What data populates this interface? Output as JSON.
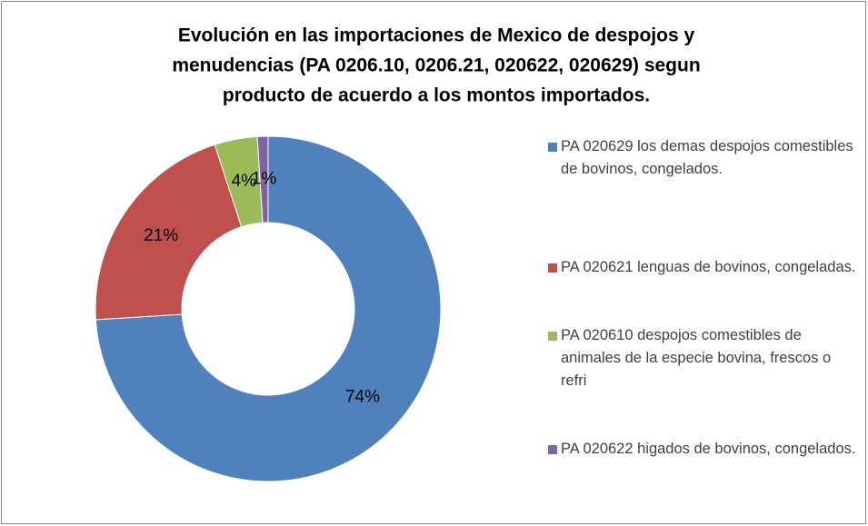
{
  "chart_data": {
    "type": "pie",
    "title": [
      "Evolución en las importaciones de Mexico de despojos y",
      "menudencias (PA 0206.10, 0206.21, 020622, 020629) segun",
      "producto de acuerdo a los montos importados."
    ],
    "categories": [
      "PA 020629 los demas despojos comestibles de bovinos, congelados.",
      "PA 020621 lenguas de bovinos, congeladas.",
      "PA 020610 despojos comestibles de animales de la especie bovina, frescos o refri",
      "PA 020622 higados de bovinos, congelados."
    ],
    "values": [
      74,
      21,
      4,
      1
    ],
    "value_labels": [
      "74%",
      "21%",
      "4%",
      "1%"
    ],
    "colors": [
      "#4f81bd",
      "#c0504d",
      "#9bbb59",
      "#8064a2"
    ],
    "donut": true,
    "legend": "right"
  }
}
